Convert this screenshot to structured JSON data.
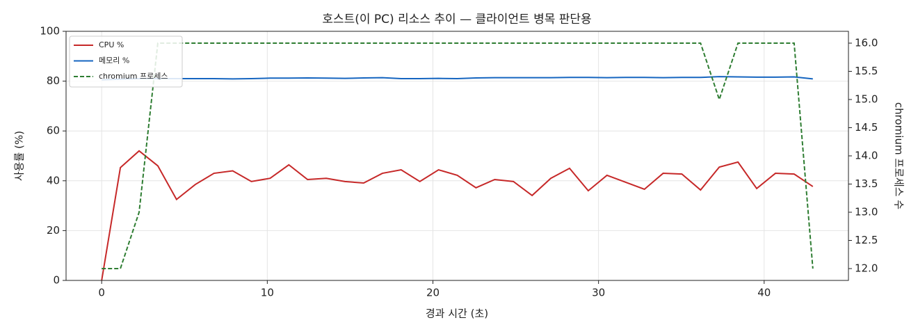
{
  "chart_data": {
    "type": "line",
    "title": "호스트(이 PC) 리소스 추이 — 클라이언트 병목 판단용",
    "x_label": "경과 시간 (초)",
    "y_label": "사용률 (%)",
    "y2_label": "chromium 프로세스 수",
    "x": [
      0,
      1.13,
      2.26,
      3.39,
      4.52,
      5.65,
      6.78,
      7.91,
      9.04,
      10.17,
      11.3,
      12.43,
      13.56,
      14.69,
      15.82,
      16.95,
      18.08,
      19.21,
      20.34,
      21.47,
      22.6,
      23.73,
      24.86,
      25.99,
      27.12,
      28.25,
      29.38,
      30.51,
      31.64,
      32.77,
      33.9,
      35.03,
      36.16,
      37.29,
      38.42,
      39.55,
      40.68,
      41.81,
      42.94
    ],
    "series": [
      {
        "name": "CPU %",
        "color": "#c62828",
        "values": [
          0,
          45.3,
          52,
          46,
          32.5,
          38.5,
          43,
          44,
          39.7,
          41,
          46.4,
          40.5,
          41,
          39.7,
          39.1,
          43,
          44.4,
          39.7,
          44.4,
          42.2,
          37.2,
          40.5,
          39.7,
          34.1,
          41,
          45,
          36,
          42.2,
          39.4,
          36.6,
          43,
          42.7,
          36.3,
          45.5,
          47.5,
          36.9,
          43,
          42.7,
          37.7
        ]
      },
      {
        "name": "메모리 %",
        "color": "#1565c0",
        "values": [
          80.5,
          80.8,
          81,
          81,
          81,
          81,
          81,
          80.9,
          81,
          81.2,
          81.2,
          81.3,
          81.2,
          81.1,
          81.3,
          81.4,
          81,
          81,
          81.1,
          81,
          81.3,
          81.4,
          81.4,
          81.4,
          81.4,
          81.5,
          81.5,
          81.4,
          81.5,
          81.5,
          81.4,
          81.5,
          81.5,
          81.8,
          81.7,
          81.6,
          81.6,
          81.7,
          80.9
        ]
      },
      {
        "name": "chromium 프로세스",
        "color": "#2e7d32",
        "axis": "y2",
        "dashed": true,
        "values": [
          12,
          12,
          13,
          16,
          16,
          16,
          16,
          16,
          16,
          16,
          16,
          16,
          16,
          16,
          16,
          16,
          16,
          16,
          16,
          16,
          16,
          16,
          16,
          16,
          16,
          16,
          16,
          16,
          16,
          16,
          16,
          16,
          16,
          15,
          16,
          16,
          16,
          16,
          12
        ]
      }
    ],
    "xlim": [
      -2.15,
      45.09
    ],
    "xticks": [
      0,
      10,
      20,
      30,
      40
    ],
    "ylim": [
      0,
      100
    ],
    "yticks": [
      0,
      20,
      40,
      60,
      80,
      100
    ],
    "y2lim": [
      11.79,
      16.21
    ],
    "y2ticks": [
      {
        "value": 12,
        "label": "12.0"
      },
      12.5,
      {
        "value": 13,
        "label": "13.0"
      },
      13.5,
      {
        "value": 14,
        "label": "14.0"
      },
      14.5,
      {
        "value": 15,
        "label": "15.0"
      },
      15.5,
      {
        "value": 16,
        "label": "16.0"
      }
    ],
    "grid": true,
    "legend": "upper left"
  }
}
